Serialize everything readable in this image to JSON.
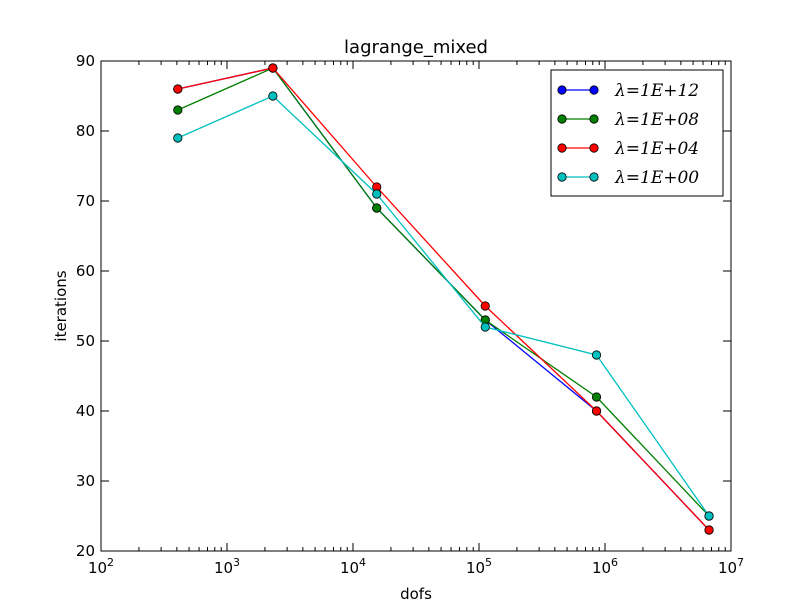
{
  "chart_data": {
    "type": "line",
    "title": "lagrange_mixed",
    "xlabel": "dofs",
    "ylabel": "iterations",
    "xscale": "log",
    "xlim": [
      100,
      10000000
    ],
    "ylim": [
      20,
      90
    ],
    "xticks": [
      {
        "base": "10",
        "exp": "2",
        "value": 100
      },
      {
        "base": "10",
        "exp": "3",
        "value": 1000
      },
      {
        "base": "10",
        "exp": "4",
        "value": 10000
      },
      {
        "base": "10",
        "exp": "5",
        "value": 100000
      },
      {
        "base": "10",
        "exp": "6",
        "value": 1000000
      },
      {
        "base": "10",
        "exp": "7",
        "value": 10000000
      }
    ],
    "yticks": [
      20,
      30,
      40,
      50,
      60,
      70,
      80,
      90
    ],
    "grid": false,
    "legend_position": "top-right",
    "x": [
      407,
      2312,
      15432,
      112132,
      856592,
      6694928
    ],
    "series": [
      {
        "name": "λ=1E+12",
        "color": "#0000ff",
        "values": [
          86,
          89,
          69,
          53,
          40,
          23
        ]
      },
      {
        "name": "λ=1E+08",
        "color": "#008000",
        "values": [
          83,
          89,
          69,
          53,
          42,
          25
        ]
      },
      {
        "name": "λ=1E+04",
        "color": "#ff0000",
        "values": [
          86,
          89,
          72,
          55,
          40,
          23
        ]
      },
      {
        "name": "λ=1E+00",
        "color": "#00bfbf",
        "values": [
          79,
          85,
          71,
          52,
          48,
          25
        ]
      }
    ]
  }
}
